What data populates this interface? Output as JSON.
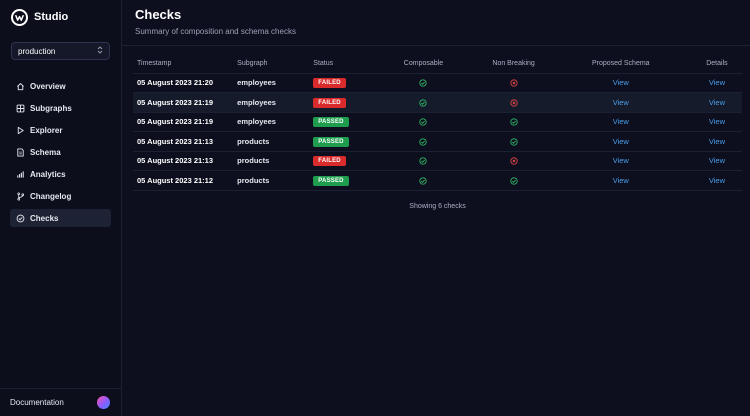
{
  "app": {
    "name": "Studio"
  },
  "environment": {
    "selected": "production"
  },
  "nav": {
    "items": [
      {
        "label": "Overview",
        "icon": "home-icon",
        "active": false
      },
      {
        "label": "Subgraphs",
        "icon": "grid-icon",
        "active": false
      },
      {
        "label": "Explorer",
        "icon": "play-icon",
        "active": false
      },
      {
        "label": "Schema",
        "icon": "document-icon",
        "active": false
      },
      {
        "label": "Analytics",
        "icon": "bar-chart-icon",
        "active": false
      },
      {
        "label": "Changelog",
        "icon": "git-branch-icon",
        "active": false
      },
      {
        "label": "Checks",
        "icon": "check-circle-icon",
        "active": true
      }
    ]
  },
  "footer": {
    "documentation": "Documentation"
  },
  "page": {
    "title": "Checks",
    "subtitle": "Summary of composition and schema checks"
  },
  "table": {
    "columns": [
      "Timestamp",
      "Subgraph",
      "Status",
      "Composable",
      "Non Breaking",
      "Proposed Schema",
      "Details"
    ],
    "rows": [
      {
        "timestamp": "05 August 2023 21:20",
        "subgraph": "employees",
        "status": "FAILED",
        "composable": true,
        "non_breaking": false,
        "proposed_schema": "View",
        "details": "View"
      },
      {
        "timestamp": "05 August 2023 21:19",
        "subgraph": "employees",
        "status": "FAILED",
        "composable": true,
        "non_breaking": false,
        "proposed_schema": "View",
        "details": "View"
      },
      {
        "timestamp": "05 August 2023 21:19",
        "subgraph": "employees",
        "status": "PASSED",
        "composable": true,
        "non_breaking": true,
        "proposed_schema": "View",
        "details": "View"
      },
      {
        "timestamp": "05 August 2023 21:13",
        "subgraph": "products",
        "status": "PASSED",
        "composable": true,
        "non_breaking": true,
        "proposed_schema": "View",
        "details": "View"
      },
      {
        "timestamp": "05 August 2023 21:13",
        "subgraph": "products",
        "status": "FAILED",
        "composable": true,
        "non_breaking": false,
        "proposed_schema": "View",
        "details": "View"
      },
      {
        "timestamp": "05 August 2023 21:12",
        "subgraph": "products",
        "status": "PASSED",
        "composable": true,
        "non_breaking": true,
        "proposed_schema": "View",
        "details": "View"
      }
    ],
    "summary": "Showing 6 checks"
  },
  "colors": {
    "failed": "#d92b2b",
    "passed": "#1f9d4f",
    "check_ok": "#2fb865",
    "check_fail": "#e04848",
    "link": "#4a9ee8"
  }
}
